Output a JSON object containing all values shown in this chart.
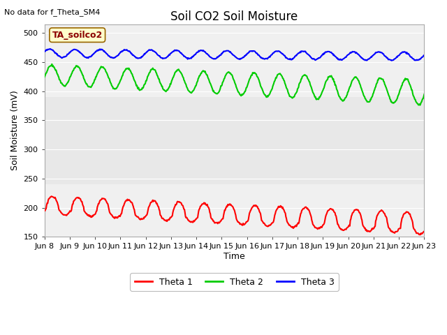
{
  "title": "Soil CO2 Soil Moisture",
  "top_left_text": "No data for f_Theta_SM4",
  "annotation_text": "TA_soilco2",
  "ylabel": "Soil Moisture (mV)",
  "xlabel": "Time",
  "ylim": [
    150,
    515
  ],
  "yticks": [
    150,
    200,
    250,
    300,
    350,
    400,
    450,
    500
  ],
  "xtick_positions": [
    0,
    1,
    2,
    3,
    4,
    5,
    6,
    7,
    8,
    9,
    10,
    11,
    12,
    13,
    14,
    15
  ],
  "xtick_labels": [
    "Jun 8",
    "Jun 9",
    "Jun 10",
    "Jun 11",
    "Jun 12",
    "Jun 13",
    "Jun 14",
    "Jun 15",
    "Jun 16",
    "Jun 17",
    "Jun 18",
    "Jun 19",
    "Jun 20",
    "Jun 21",
    "Jun 22",
    "Jun 23"
  ],
  "color_theta1": "#ff0000",
  "color_theta2": "#00cc00",
  "color_theta3": "#0000ff",
  "legend_labels": [
    "Theta 1",
    "Theta 2",
    "Theta 3"
  ],
  "bg_color": "#ffffff",
  "plot_bg_color": "#e8e8e8",
  "band_light_color": "#f0f0f0",
  "annotation_bg": "#ffffcc",
  "annotation_border": "#996600",
  "title_fontsize": 12,
  "axis_label_fontsize": 9,
  "tick_fontsize": 8,
  "linewidth": 1.5
}
